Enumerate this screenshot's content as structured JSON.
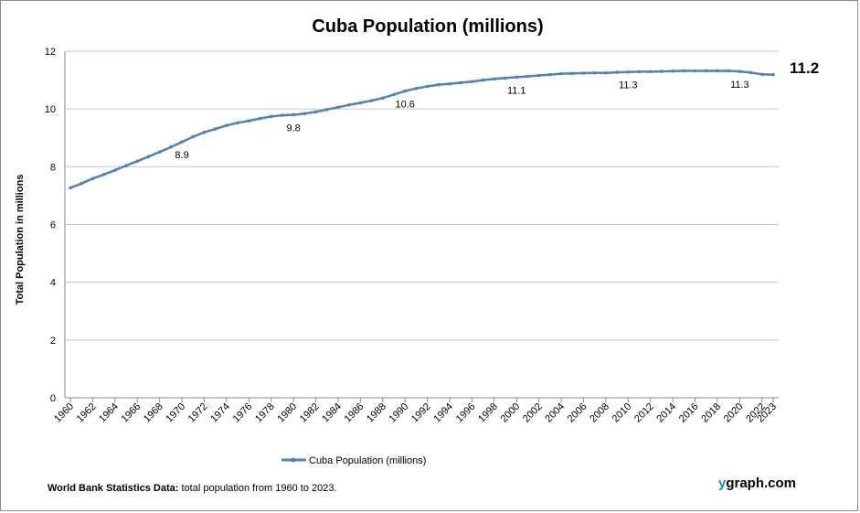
{
  "chart_data": {
    "type": "line",
    "title": "Cuba Population (millions)",
    "ylabel": "Total Population  in millions",
    "xlabel": "",
    "ylim": [
      0,
      12
    ],
    "yticks": [
      0,
      2,
      4,
      6,
      8,
      10,
      12
    ],
    "xlim": [
      1960,
      2023
    ],
    "xticks": [
      1960,
      1962,
      1964,
      1966,
      1968,
      1970,
      1972,
      1974,
      1976,
      1978,
      1980,
      1982,
      1984,
      1986,
      1988,
      1990,
      1992,
      1994,
      1996,
      1998,
      2000,
      2002,
      2004,
      2006,
      2008,
      2010,
      2012,
      2014,
      2016,
      2018,
      2020,
      2022,
      2023
    ],
    "grid": true,
    "legend": "bottom",
    "series": [
      {
        "name": "Cuba Population (millions)",
        "color": "#4f81bd",
        "x": [
          1960,
          1961,
          1962,
          1963,
          1964,
          1965,
          1966,
          1967,
          1968,
          1969,
          1970,
          1971,
          1972,
          1973,
          1974,
          1975,
          1976,
          1977,
          1978,
          1979,
          1980,
          1981,
          1982,
          1983,
          1984,
          1985,
          1986,
          1987,
          1988,
          1989,
          1990,
          1991,
          1992,
          1993,
          1994,
          1995,
          1996,
          1997,
          1998,
          1999,
          2000,
          2001,
          2002,
          2003,
          2004,
          2005,
          2006,
          2007,
          2008,
          2009,
          2010,
          2011,
          2012,
          2013,
          2014,
          2015,
          2016,
          2017,
          2018,
          2019,
          2020,
          2021,
          2022,
          2023
        ],
        "values": [
          7.27,
          7.42,
          7.59,
          7.73,
          7.88,
          8.04,
          8.19,
          8.35,
          8.51,
          8.68,
          8.86,
          9.04,
          9.19,
          9.31,
          9.43,
          9.52,
          9.59,
          9.67,
          9.74,
          9.78,
          9.8,
          9.84,
          9.9,
          9.98,
          10.06,
          10.14,
          10.21,
          10.29,
          10.38,
          10.5,
          10.62,
          10.71,
          10.78,
          10.84,
          10.87,
          10.91,
          10.95,
          11.0,
          11.04,
          11.07,
          11.1,
          11.13,
          11.16,
          11.19,
          11.22,
          11.23,
          11.24,
          11.25,
          11.25,
          11.27,
          11.28,
          11.29,
          11.29,
          11.3,
          11.31,
          11.32,
          11.32,
          11.32,
          11.32,
          11.32,
          11.3,
          11.26,
          11.2,
          11.19
        ]
      }
    ],
    "annotations": [
      {
        "x": 1970,
        "text": "8.9"
      },
      {
        "x": 1980,
        "text": "9.8"
      },
      {
        "x": 1990,
        "text": "10.6"
      },
      {
        "x": 2000,
        "text": "11.1"
      },
      {
        "x": 2010,
        "text": "11.3"
      },
      {
        "x": 2020,
        "text": "11.3"
      }
    ],
    "final_label": "11.2"
  },
  "footnote": {
    "bold": "World Bank Statistics Data:",
    "text": " total population from 1960 to 2023."
  },
  "brand": {
    "first": "y",
    "rest": "graph.com"
  }
}
